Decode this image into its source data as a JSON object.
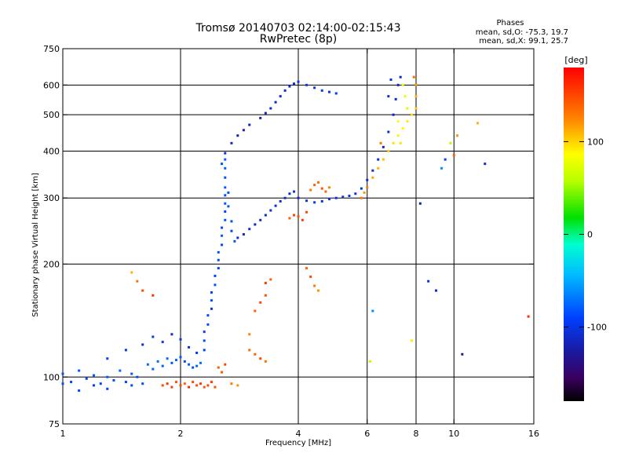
{
  "chart_data": {
    "type": "scatter",
    "title": "Tromsø 20140703 02:14:00-02:15:43",
    "subtitle": "RwPretec (8p)",
    "annotation": {
      "heading": "Phases",
      "line1": "mean, sd,O: -75.3, 19.7",
      "line2": "mean, sd,X:  99.1, 25.7"
    },
    "xlabel": "Frequency [MHz]",
    "ylabel": "Stationary phase Virtual Height [km]",
    "x_scale": "log",
    "y_scale": "log",
    "xlim": [
      1,
      16
    ],
    "ylim": [
      75,
      750
    ],
    "x_ticks": [
      1,
      2,
      4,
      6,
      8,
      10,
      16
    ],
    "x_tick_labels": [
      "1",
      "2",
      "4",
      "6",
      "8",
      "10",
      "16"
    ],
    "y_ticks": [
      75,
      100,
      200,
      300,
      400,
      500,
      600,
      750
    ],
    "y_tick_labels": [
      "75",
      "100",
      "200",
      "300",
      "400",
      "500",
      "600",
      "750"
    ],
    "grid_x": [
      2,
      4,
      6,
      8,
      10
    ],
    "grid_y": [
      100,
      200,
      300,
      400,
      500,
      600
    ],
    "colorbar": {
      "label": "[deg]",
      "range": [
        -180,
        180
      ],
      "ticks": [
        100,
        0,
        -100
      ],
      "tick_labels": [
        "100",
        "0",
        "-100"
      ]
    },
    "series": [
      {
        "points": [
          [
            1.0,
            102,
            -85
          ],
          [
            1.05,
            97,
            -90
          ],
          [
            1.1,
            104,
            -80
          ],
          [
            1.15,
            99,
            -88
          ],
          [
            1.2,
            101,
            -82
          ],
          [
            1.25,
            96,
            -92
          ],
          [
            1.3,
            100,
            -78
          ],
          [
            1.35,
            98,
            -85
          ],
          [
            1.4,
            104,
            -75
          ],
          [
            1.45,
            97,
            -90
          ],
          [
            1.5,
            102,
            -80
          ],
          [
            1.55,
            100,
            -84
          ],
          [
            1.6,
            96,
            -88
          ],
          [
            1.65,
            108,
            -72
          ],
          [
            1.7,
            105,
            -76
          ],
          [
            1.75,
            110,
            -70
          ],
          [
            1.8,
            107,
            -78
          ],
          [
            1.85,
            112,
            -74
          ],
          [
            1.9,
            109,
            -82
          ],
          [
            1.95,
            111,
            -76
          ],
          [
            2.0,
            113,
            -80
          ],
          [
            2.05,
            110,
            -84
          ],
          [
            2.1,
            108,
            -78
          ],
          [
            2.15,
            106,
            -82
          ],
          [
            2.2,
            107,
            -76
          ],
          [
            2.25,
            109,
            -70
          ],
          [
            1.3,
            112,
            -95
          ],
          [
            1.45,
            118,
            -100
          ],
          [
            1.6,
            122,
            -105
          ],
          [
            1.7,
            128,
            -95
          ],
          [
            1.8,
            124,
            -100
          ],
          [
            1.9,
            130,
            -110
          ],
          [
            2.0,
            126,
            -98
          ],
          [
            2.1,
            120,
            -102
          ],
          [
            2.2,
            116,
            -96
          ],
          [
            1.5,
            95,
            -85
          ],
          [
            1.2,
            95,
            -92
          ],
          [
            1.1,
            92,
            -88
          ],
          [
            1.0,
            96,
            -86
          ],
          [
            1.3,
            93,
            -90
          ]
        ]
      },
      {
        "points": [
          [
            2.3,
            118,
            -90
          ],
          [
            2.3,
            125,
            -86
          ],
          [
            2.3,
            132,
            -92
          ],
          [
            2.35,
            138,
            -84
          ],
          [
            2.35,
            146,
            -88
          ],
          [
            2.4,
            152,
            -94
          ],
          [
            2.4,
            160,
            -86
          ],
          [
            2.4,
            168,
            -90
          ],
          [
            2.45,
            176,
            -84
          ],
          [
            2.45,
            186,
            -88
          ],
          [
            2.5,
            195,
            -92
          ],
          [
            2.5,
            205,
            -86
          ],
          [
            2.5,
            215,
            -84
          ],
          [
            2.55,
            225,
            -88
          ],
          [
            2.55,
            238,
            -80
          ],
          [
            2.55,
            250,
            -86
          ],
          [
            2.6,
            262,
            -82
          ],
          [
            2.6,
            276,
            -88
          ],
          [
            2.6,
            290,
            -80
          ],
          [
            2.6,
            305,
            -84
          ],
          [
            2.6,
            320,
            -78
          ],
          [
            2.6,
            340,
            -82
          ],
          [
            2.6,
            360,
            -76
          ],
          [
            2.6,
            380,
            -80
          ],
          [
            2.55,
            370,
            -84
          ],
          [
            2.65,
            310,
            -86
          ],
          [
            2.65,
            285,
            -80
          ],
          [
            2.7,
            260,
            -84
          ],
          [
            2.7,
            245,
            -88
          ],
          [
            2.75,
            230,
            -82
          ]
        ]
      },
      {
        "points": [
          [
            2.8,
            235,
            -105
          ],
          [
            2.9,
            240,
            -110
          ],
          [
            3.0,
            248,
            -108
          ],
          [
            3.1,
            255,
            -112
          ],
          [
            3.2,
            262,
            -106
          ],
          [
            3.3,
            270,
            -110
          ],
          [
            3.4,
            278,
            -104
          ],
          [
            3.5,
            286,
            -108
          ],
          [
            3.6,
            294,
            -102
          ],
          [
            3.7,
            300,
            -106
          ],
          [
            3.8,
            308,
            -110
          ],
          [
            3.9,
            312,
            -104
          ],
          [
            4.0,
            300,
            -108
          ],
          [
            4.2,
            295,
            -102
          ],
          [
            4.4,
            292,
            -98
          ],
          [
            4.6,
            294,
            -104
          ],
          [
            4.8,
            298,
            -100
          ],
          [
            5.0,
            300,
            -96
          ],
          [
            5.2,
            302,
            -102
          ],
          [
            5.4,
            304,
            -98
          ],
          [
            5.6,
            308,
            -104
          ],
          [
            5.8,
            318,
            -100
          ],
          [
            6.0,
            335,
            -106
          ],
          [
            6.2,
            355,
            -102
          ],
          [
            6.4,
            380,
            -108
          ],
          [
            6.6,
            410,
            -112
          ],
          [
            6.8,
            450,
            -110
          ],
          [
            7.0,
            500,
            -114
          ],
          [
            7.1,
            550,
            -108
          ],
          [
            7.2,
            600,
            -112
          ],
          [
            7.3,
            630,
            -110
          ],
          [
            6.9,
            620,
            -104
          ],
          [
            6.8,
            560,
            -108
          ]
        ]
      },
      {
        "points": [
          [
            3.2,
            490,
            -120
          ],
          [
            3.3,
            505,
            -116
          ],
          [
            3.4,
            520,
            -110
          ],
          [
            3.5,
            540,
            -112
          ],
          [
            3.6,
            560,
            -108
          ],
          [
            3.7,
            580,
            -106
          ],
          [
            3.8,
            595,
            -110
          ],
          [
            3.9,
            605,
            -104
          ],
          [
            4.0,
            612,
            -100
          ],
          [
            4.2,
            600,
            -98
          ],
          [
            4.4,
            590,
            -102
          ],
          [
            4.6,
            580,
            -96
          ],
          [
            4.8,
            575,
            -100
          ],
          [
            5.0,
            570,
            -94
          ],
          [
            3.0,
            470,
            -118
          ],
          [
            2.9,
            455,
            -114
          ],
          [
            2.8,
            440,
            -120
          ],
          [
            2.7,
            420,
            -112
          ],
          [
            2.6,
            395,
            -108
          ]
        ]
      },
      {
        "points": [
          [
            3.8,
            265,
            140
          ],
          [
            3.9,
            270,
            150
          ],
          [
            4.0,
            268,
            145
          ],
          [
            4.1,
            262,
            155
          ],
          [
            4.2,
            275,
            150
          ],
          [
            4.3,
            315,
            130
          ],
          [
            4.4,
            325,
            140
          ],
          [
            4.5,
            330,
            135
          ],
          [
            4.6,
            318,
            145
          ],
          [
            4.7,
            312,
            138
          ],
          [
            4.8,
            320,
            125
          ],
          [
            5.8,
            300,
            130
          ],
          [
            5.9,
            310,
            120
          ],
          [
            6.0,
            320,
            128
          ],
          [
            6.2,
            340,
            115
          ],
          [
            6.4,
            360,
            110
          ],
          [
            6.6,
            380,
            105
          ],
          [
            6.8,
            400,
            100
          ],
          [
            7.0,
            420,
            95
          ],
          [
            7.2,
            440,
            90
          ],
          [
            7.4,
            460,
            88
          ],
          [
            7.6,
            480,
            92
          ],
          [
            7.8,
            500,
            98
          ],
          [
            8.0,
            520,
            104
          ],
          [
            8.0,
            560,
            110
          ],
          [
            8.0,
            600,
            120
          ],
          [
            7.9,
            630,
            135
          ],
          [
            7.5,
            560,
            80
          ],
          [
            7.6,
            520,
            70
          ],
          [
            7.4,
            600,
            75
          ],
          [
            7.2,
            480,
            85
          ],
          [
            7.3,
            420,
            95
          ]
        ]
      },
      {
        "points": [
          [
            1.8,
            95,
            150
          ],
          [
            1.85,
            96,
            160
          ],
          [
            1.9,
            94,
            155
          ],
          [
            1.95,
            97,
            145
          ],
          [
            2.0,
            95,
            150
          ],
          [
            2.05,
            96,
            140
          ],
          [
            2.1,
            94,
            160
          ],
          [
            2.15,
            97,
            152
          ],
          [
            2.2,
            95,
            148
          ],
          [
            2.25,
            96,
            158
          ],
          [
            2.3,
            94,
            142
          ],
          [
            2.35,
            95,
            150
          ],
          [
            2.4,
            97,
            155
          ],
          [
            2.45,
            94,
            146
          ],
          [
            2.7,
            96,
            130
          ],
          [
            2.8,
            95,
            120
          ],
          [
            3.0,
            118,
            135
          ],
          [
            3.1,
            115,
            140
          ],
          [
            3.2,
            112,
            150
          ],
          [
            3.3,
            110,
            130
          ],
          [
            3.1,
            150,
            140
          ],
          [
            3.2,
            158,
            150
          ],
          [
            3.3,
            165,
            145
          ],
          [
            3.3,
            178,
            155
          ],
          [
            3.4,
            182,
            140
          ],
          [
            3.0,
            130,
            125
          ],
          [
            2.5,
            106,
            140
          ],
          [
            2.6,
            108,
            150
          ],
          [
            2.55,
            103,
            145
          ]
        ]
      },
      {
        "points": [
          [
            1.5,
            190,
            110
          ],
          [
            1.55,
            180,
            130
          ],
          [
            1.6,
            170,
            150
          ],
          [
            1.7,
            165,
            160
          ],
          [
            4.2,
            195,
            140
          ],
          [
            4.3,
            185,
            150
          ],
          [
            4.4,
            175,
            130
          ],
          [
            4.5,
            170,
            120
          ],
          [
            6.2,
            150,
            -60
          ],
          [
            6.5,
            420,
            130
          ],
          [
            8.2,
            290,
            -120
          ],
          [
            8.6,
            180,
            -100
          ],
          [
            9.0,
            170,
            -110
          ],
          [
            9.3,
            360,
            -60
          ],
          [
            9.5,
            380,
            -90
          ],
          [
            9.8,
            420,
            60
          ],
          [
            10.0,
            390,
            140
          ],
          [
            10.2,
            440,
            120
          ],
          [
            11.5,
            475,
            110
          ],
          [
            12.0,
            370,
            -110
          ],
          [
            15.5,
            145,
            160
          ],
          [
            10.5,
            115,
            -130
          ],
          [
            7.8,
            125,
            90
          ],
          [
            6.1,
            110,
            60
          ]
        ]
      }
    ]
  }
}
